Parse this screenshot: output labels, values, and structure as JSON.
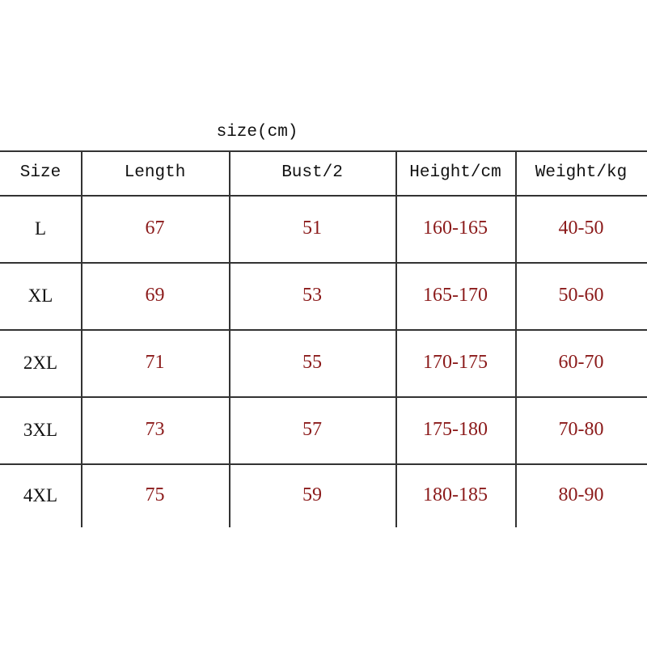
{
  "title": "size(cm)",
  "headers": [
    "Size",
    "Length",
    "Bust/2",
    "Height/cm",
    "Weight/kg"
  ],
  "rows": [
    [
      "L",
      "67",
      "51",
      "160-165",
      "40-50"
    ],
    [
      "XL",
      "69",
      "53",
      "165-170",
      "50-60"
    ],
    [
      "2XL",
      "71",
      "55",
      "170-175",
      "60-70"
    ],
    [
      "3XL",
      "73",
      "57",
      "175-180",
      "70-80"
    ],
    [
      "4XL",
      "75",
      "59",
      "180-185",
      "80-90"
    ]
  ],
  "colors": {
    "value_text": "#8b1a1a",
    "header_text": "#111111",
    "grid": "#333333"
  }
}
